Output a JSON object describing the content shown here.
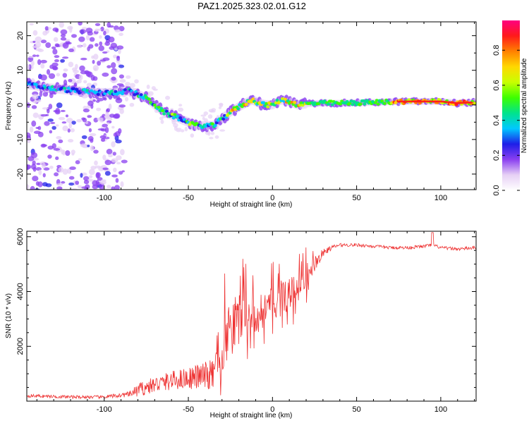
{
  "chart_data": [
    {
      "type": "heatmap",
      "title": "PAZ1.2025.323.02.01.G12",
      "xlabel": "Height of straight line (km)",
      "ylabel": "Frequency (Hz)",
      "xlim": [
        -146,
        121
      ],
      "ylim": [
        -24.5,
        24
      ],
      "x_ticks": [
        -100,
        -50,
        0,
        50,
        100
      ],
      "y_ticks": [
        20,
        10,
        0,
        -10,
        -20
      ],
      "colorbar": {
        "label": "Normalized spectral amplitude",
        "range": [
          0.0,
          0.97
        ],
        "ticks": [
          0.0,
          0.2,
          0.4,
          0.6,
          0.8
        ],
        "colors": [
          "#ffffff",
          "#e6d0f5",
          "#8a3ff0",
          "#1e1ee8",
          "#00c8ff",
          "#00e38c",
          "#3dff00",
          "#c8ff00",
          "#ffd800",
          "#ff8000",
          "#ff1a1a",
          "#ff0080"
        ]
      },
      "ridge": {
        "x": [
          -146,
          -135,
          -125,
          -115,
          -105,
          -95,
          -85,
          -75,
          -65,
          -55,
          -45,
          -35,
          -30,
          -25,
          -18,
          -12,
          -8,
          -4,
          0,
          5,
          10,
          15,
          20,
          30,
          40,
          50,
          60,
          70,
          80,
          90,
          100,
          110,
          121
        ],
        "y": [
          6,
          5,
          4.5,
          4,
          3.5,
          3.5,
          4,
          2,
          -2,
          -4,
          -6,
          -6,
          -4,
          -2,
          0,
          1.5,
          0.5,
          0,
          0,
          1.5,
          1,
          0,
          0.3,
          0.5,
          0.5,
          0.6,
          0.7,
          0.9,
          1.0,
          1.0,
          1.0,
          0.5,
          0.8
        ]
      }
    },
    {
      "type": "line",
      "xlabel": "Height of straight line (km)",
      "ylabel": "SNR (10 * v/v)",
      "xlim": [
        -146,
        121
      ],
      "ylim": [
        0,
        6200
      ],
      "x_ticks": [
        -100,
        -50,
        0,
        50,
        100
      ],
      "y_ticks": [
        2000,
        4000,
        6000
      ],
      "color": "#ee3333",
      "series": [
        {
          "name": "SNR",
          "x": [
            -146,
            -120,
            -100,
            -85,
            -80,
            -70,
            -60,
            -50,
            -42,
            -35,
            -33,
            -30,
            -25,
            -20,
            -15,
            -10,
            -5,
            0,
            5,
            10,
            15,
            20,
            25,
            30,
            35,
            40,
            50,
            60,
            70,
            80,
            90,
            95,
            100,
            110,
            121
          ],
          "y": [
            200,
            150,
            150,
            250,
            400,
            600,
            750,
            850,
            900,
            950,
            1500,
            2000,
            2600,
            3000,
            3100,
            3200,
            3300,
            3500,
            3700,
            3900,
            4100,
            4500,
            5000,
            5400,
            5600,
            5700,
            5700,
            5650,
            5600,
            5600,
            5650,
            5700,
            5600,
            5550,
            5600
          ],
          "noise": [
            60,
            60,
            60,
            100,
            250,
            300,
            350,
            400,
            500,
            600,
            900,
            1100,
            1000,
            1000,
            900,
            800,
            750,
            700,
            700,
            650,
            550,
            500,
            300,
            150,
            80,
            60,
            60,
            60,
            60,
            60,
            60,
            60,
            60,
            60,
            60
          ]
        }
      ]
    }
  ]
}
